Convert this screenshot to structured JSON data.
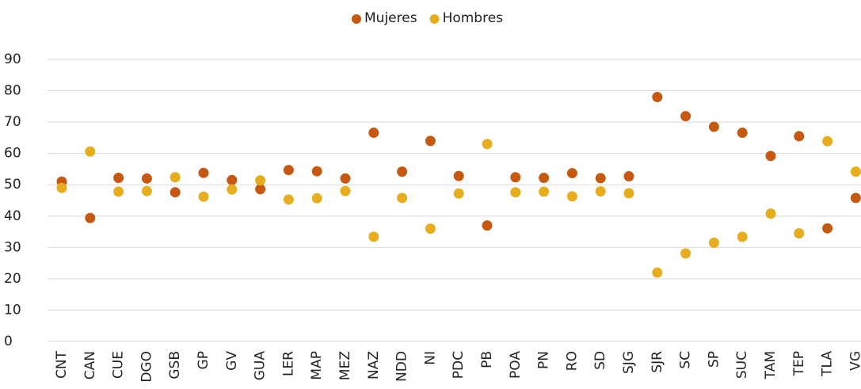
{
  "chart_data": {
    "type": "scatter",
    "categories": [
      "CNT",
      "CAN",
      "CUE",
      "DGO",
      "GSB",
      "GP",
      "GV",
      "GUA",
      "LER",
      "MAP",
      "MEZ",
      "NAZ",
      "NDD",
      "NI",
      "PDC",
      "PB",
      "POA",
      "PN",
      "RO",
      "SD",
      "SJG",
      "SJR",
      "SC",
      "SP",
      "SUC",
      "TAM",
      "TEP",
      "TLA",
      "VG"
    ],
    "series": [
      {
        "name": "Mujeres",
        "color": "#c65911",
        "values": [
          51,
          39.4,
          52.2,
          52,
          47.6,
          53.8,
          51.5,
          48.6,
          54.7,
          54.3,
          52,
          66.6,
          54.2,
          64,
          52.8,
          37,
          52.4,
          52.2,
          53.7,
          52.1,
          52.7,
          78,
          71.9,
          68.5,
          66.6,
          59.2,
          65.5,
          36.1,
          45.8
        ]
      },
      {
        "name": "Hombres",
        "color": "#e6ad1f",
        "values": [
          49,
          60.6,
          47.8,
          48,
          52.4,
          46.2,
          48.5,
          51.4,
          45.3,
          45.7,
          48,
          33.4,
          45.8,
          36,
          47.2,
          63,
          47.6,
          47.8,
          46.3,
          47.9,
          47.3,
          22,
          28.1,
          31.5,
          33.4,
          40.8,
          34.5,
          63.9,
          54.2
        ]
      }
    ],
    "ylim": [
      0,
      90
    ],
    "yticks": [
      0,
      10,
      20,
      30,
      40,
      50,
      60,
      70,
      80,
      90
    ],
    "grid": true,
    "legend": "top"
  }
}
